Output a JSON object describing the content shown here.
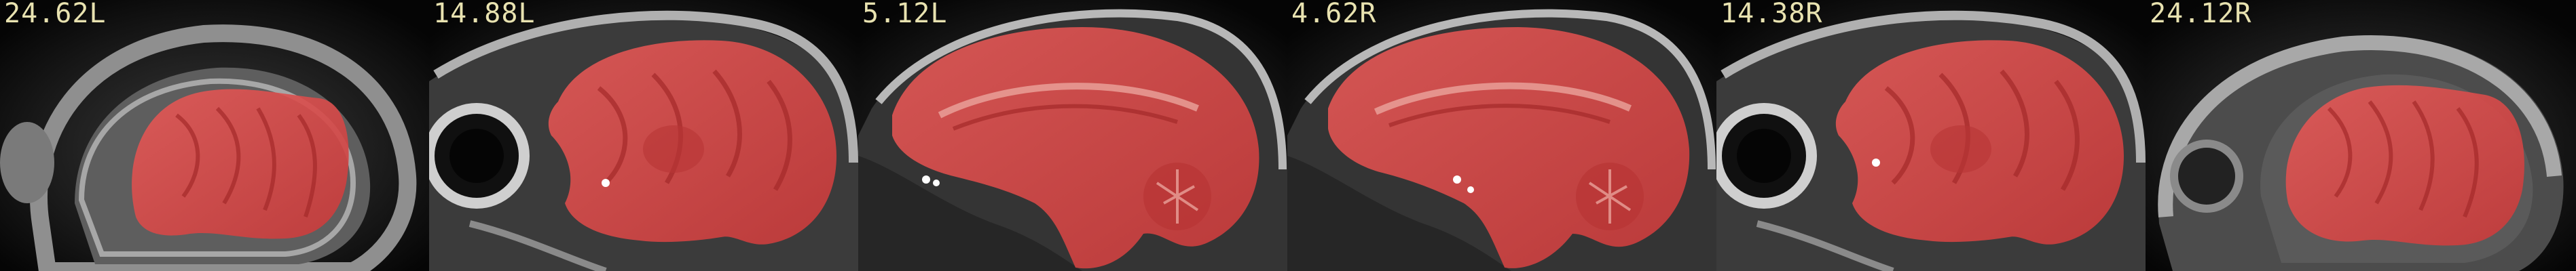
{
  "slices": [
    {
      "label": "24.62L"
    },
    {
      "label": "14.88L"
    },
    {
      "label": "5.12L"
    },
    {
      "label": "4.62R"
    },
    {
      "label": "14.38R"
    },
    {
      "label": "24.12R"
    }
  ],
  "colors": {
    "background": "#000000",
    "label": "#e8e2b0",
    "mask_overlay": "#e0403f",
    "tissue_light": "#9a9a9a",
    "tissue_dark": "#2a2a2a"
  }
}
